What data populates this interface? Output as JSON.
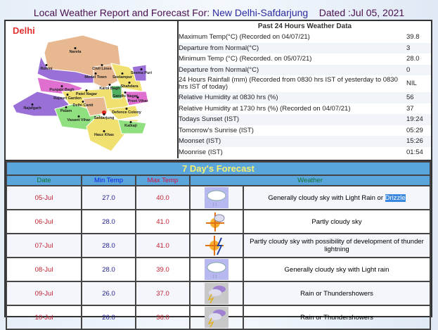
{
  "header": {
    "title_prefix": "Local Weather Report and Forecast For: ",
    "location": "New Delhi-Safdarjung",
    "dated": "Dated :Jul 05, 2021"
  },
  "map": {
    "label": "Delhi",
    "districts": [
      "Narela",
      "Rohini",
      "Model Town",
      "Seelampur",
      "Shahdara",
      "Punjabi Bagh",
      "Patel Nagar",
      "Karol Bagh",
      "Rajouri Garden",
      "Delhi Cantt",
      "Najafgarh",
      "Palam",
      "Vasant Vihar",
      "Safdarjung",
      "Defence Colony",
      "Kalkaji",
      "Hauz Khas",
      "Preet Vihar",
      "Seema Puri",
      "Civil Lines",
      "Gandhi Nagar"
    ]
  },
  "past": {
    "heading": "Past 24 Hours Weather Data",
    "rows": [
      {
        "k": "Maximum Temp(°C) (Recorded on 04/07/21)",
        "v": "39.8"
      },
      {
        "k": "Departure from Normal(°C)",
        "v": "3"
      },
      {
        "k": "Minimum Temp (°C) (Recorded. on 05/07/21)",
        "v": "28.0"
      },
      {
        "k": "Departure from Normal(°C)",
        "v": "0"
      },
      {
        "k": "24 Hours Rainfall (mm) (Recorded from 0830 hrs IST of yesterday to 0830 hrs IST of today)",
        "v": "NIL"
      },
      {
        "k": "Relative Humidity at 0830 hrs (%)",
        "v": "56"
      },
      {
        "k": "Relative Humidity at 1730 hrs (%) (Recorded on 04/07/21)",
        "v": "37"
      },
      {
        "k": "Todays Sunset (IST)",
        "v": "19:24"
      },
      {
        "k": "Tomorrow's Sunrise (IST)",
        "v": "05:29"
      },
      {
        "k": "Moonset (IST)",
        "v": "15:26"
      },
      {
        "k": "Moonrise (IST)",
        "v": "01:54"
      }
    ]
  },
  "forecast": {
    "title": "7 Day's Forecast",
    "cols": [
      "Date",
      "Min Temp",
      "Max Temp",
      "Weather"
    ],
    "rows": [
      {
        "date": "05-Jul",
        "min": "27.0",
        "max": "40.0",
        "icon": "cloud-rain-icon",
        "w": "Generally cloudy sky with Light Rain or ",
        "sel": "Drizzle"
      },
      {
        "date": "06-Jul",
        "min": "28.0",
        "max": "41.0",
        "icon": "partly-cloudy-icon",
        "w": "Partly cloudy sky"
      },
      {
        "date": "07-Jul",
        "min": "28.0",
        "max": "41.0",
        "icon": "sun-thunder-icon",
        "w": "Partly cloudy sky with possibility of development of thunder lightning"
      },
      {
        "date": "08-Jul",
        "min": "28.0",
        "max": "39.0",
        "icon": "cloud-rain-icon",
        "w": "Generally cloudy sky with Light rain"
      },
      {
        "date": "09-Jul",
        "min": "26.0",
        "max": "37.0",
        "icon": "thundershower-icon",
        "w": "Rain or Thundershowers"
      },
      {
        "date": "10-Jul",
        "min": "26.0",
        "max": "36.0",
        "icon": "thundershower-icon",
        "w": "Rain or Thundershowers"
      }
    ]
  }
}
